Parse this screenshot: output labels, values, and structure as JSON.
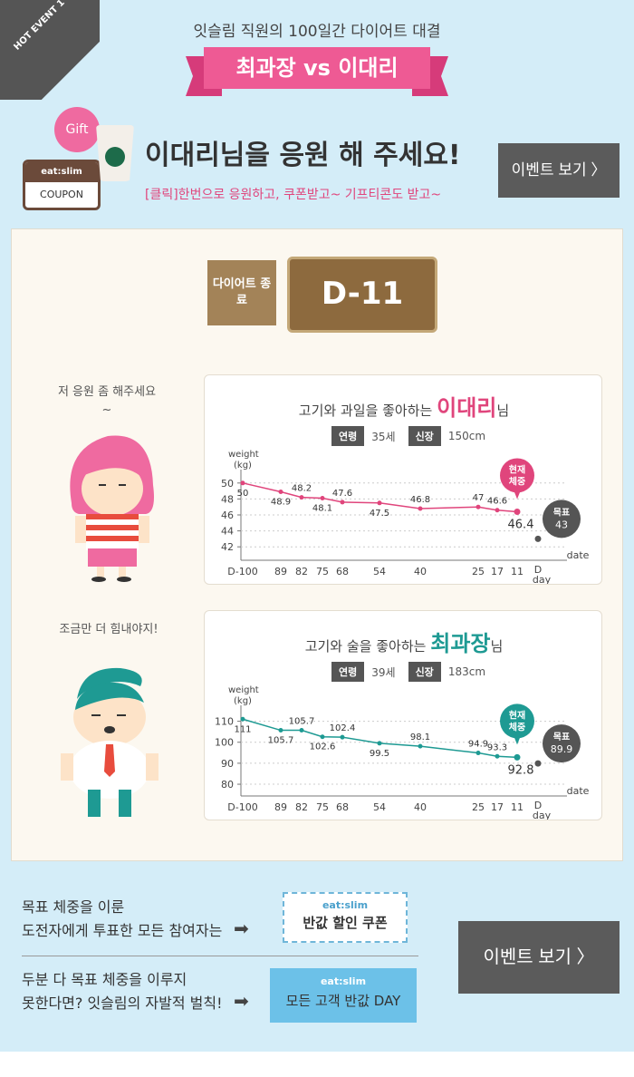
{
  "header": {
    "corner_badge": "HOT EVENT 1",
    "sub_title": "잇슬림 직원의 100일간 다이어트 대결",
    "versus": "최과장 vs 이대리"
  },
  "banner": {
    "gift_label": "Gift",
    "coupon_brand": "eat:slim",
    "coupon_label": "COUPON",
    "cheer_text": "이대리님을 응원 해 주세요!",
    "sub_text": "[클릭]한번으로 응원하고, 쿠폰받고~ 기프티콘도 받고~",
    "event_button": "이벤트 보기  〉"
  },
  "countdown": {
    "label": "다이어트 종료",
    "value": "D-11"
  },
  "speech": {
    "lee": "저 응원 좀 해주세요~",
    "choi": "조금만 더 힘내야지!"
  },
  "lee": {
    "title_prefix": "고기와 과일을 좋아하는",
    "name": "이대리",
    "suffix": "님",
    "age_label": "연령",
    "age": "35세",
    "height_label": "신장",
    "height": "150cm",
    "current_label": "현재 체중",
    "goal_label": "목표",
    "accent": "#e0457c"
  },
  "choi": {
    "title_prefix": "고기와 술을 좋아하는",
    "name": "최과장",
    "suffix": "님",
    "age_label": "연령",
    "age": "39세",
    "height_label": "신장",
    "height": "183cm",
    "current_label": "현재 체중",
    "goal_label": "목표",
    "accent": "#1e9a93"
  },
  "chart_data": [
    {
      "type": "line",
      "ylabel": "weight (kg)",
      "xlabel": "date",
      "categories": [
        "D-100",
        "89",
        "82",
        "75",
        "68",
        "54",
        "40",
        "25",
        "17",
        "11",
        "D day"
      ],
      "series": [
        {
          "values": [
            50,
            48.9,
            48.2,
            48.1,
            47.6,
            47.5,
            46.8,
            47,
            46.6,
            46.4,
            null
          ],
          "color": "#e0457c"
        }
      ],
      "goal": 43,
      "yticks": [
        42,
        44,
        46,
        48,
        50
      ],
      "ylim": [
        41,
        51
      ]
    },
    {
      "type": "line",
      "ylabel": "weight (kg)",
      "xlabel": "date",
      "categories": [
        "D-100",
        "89",
        "82",
        "75",
        "68",
        "54",
        "40",
        "25",
        "17",
        "11",
        "D day"
      ],
      "series": [
        {
          "values": [
            111,
            105.7,
            105.7,
            102.6,
            102.4,
            99.5,
            98.1,
            94.9,
            93.3,
            92.8,
            null
          ],
          "color": "#1e9a93"
        }
      ],
      "goal": 89.9,
      "yticks": [
        80,
        90,
        100,
        110
      ],
      "ylim": [
        77,
        115
      ]
    }
  ],
  "bottom": {
    "line1a": "목표 체중을 이룬",
    "line1b": "도전자에게 투표한 모든 참여자는",
    "coupon_brand": "eat:slim",
    "coupon_text": "반값 할인 쿠폰",
    "line2a": "두분 다 목표 체중을 이루지",
    "line2b": "못한다면? 잇슬림의 자발적 벌칙!",
    "day_brand": "eat:slim",
    "day_text": "모든 고객 반값 DAY",
    "event_button": "이벤트 보기  〉"
  }
}
